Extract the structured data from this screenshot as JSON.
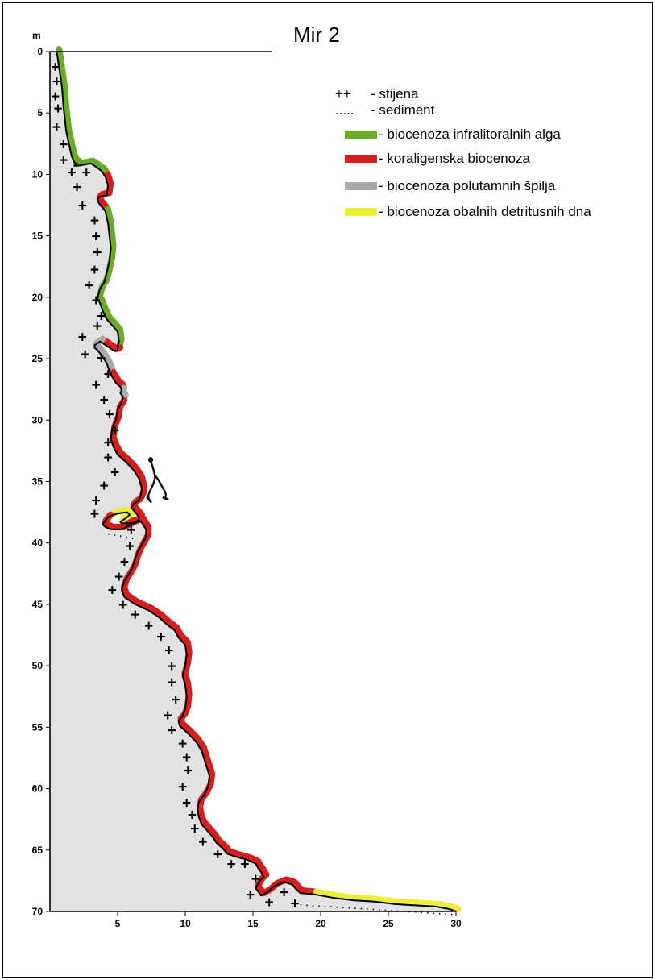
{
  "title": "Mir 2",
  "y_unit": "m",
  "legend": [
    {
      "symbol": "++",
      "label": "- stijena",
      "color": null,
      "icon": "rock-symbol"
    },
    {
      "symbol": ".....",
      "label": "- sediment",
      "color": null,
      "icon": "sediment-symbol"
    },
    {
      "symbol": "",
      "label": "- biocenoza infralitoralnih alga",
      "color": "#6aaa2a",
      "icon": "green-swatch"
    },
    {
      "symbol": "",
      "label": "- koraligenska biocenoza",
      "color": "#d51f1f",
      "icon": "red-swatch"
    },
    {
      "symbol": "",
      "label": "- biocenoza polutamnih špilja",
      "color": "#aaaaaa",
      "icon": "gray-swatch"
    },
    {
      "symbol": "",
      "label": "- biocenoza obalnih detritusnih dna",
      "color": "#eded3c",
      "icon": "yellow-swatch"
    }
  ],
  "chart_data": {
    "type": "profile",
    "title": "Mir 2",
    "xlabel": "",
    "ylabel": "m",
    "xlim": [
      0,
      30
    ],
    "ylim": [
      0,
      70
    ],
    "y_inverted": true,
    "x_ticks": [
      5,
      10,
      15,
      20,
      25,
      30
    ],
    "y_ticks": [
      0,
      5,
      10,
      15,
      20,
      25,
      30,
      35,
      40,
      45,
      50,
      55,
      60,
      65,
      70
    ],
    "profile": {
      "x": [
        0.5,
        0.7,
        0.9,
        1.0,
        1.1,
        1.2,
        1.4,
        1.6,
        1.8,
        1.9,
        2.0,
        1.9,
        1.8,
        2.0,
        2.5,
        3.0,
        3.3,
        3.8,
        4.1,
        4.3,
        4.2,
        3.7,
        3.5,
        3.6,
        3.8,
        4.1,
        4.3,
        4.4,
        4.5,
        4.4,
        4.2,
        4.0,
        3.7,
        3.6,
        3.5,
        3.7,
        3.9,
        4.2,
        4.6,
        5.0,
        5.1,
        5.0,
        5.0,
        4.8,
        3.7,
        3.3,
        3.3,
        3.5,
        3.8,
        4.2,
        4.5,
        4.9,
        5.2,
        5.3,
        5.2,
        5.4,
        5.3,
        5.0,
        4.9,
        4.6,
        4.5,
        4.7,
        5.0,
        5.6,
        6.2,
        6.6,
        6.8,
        6.7,
        6.5,
        6.2,
        6.0,
        6.3,
        6.6,
        6.5,
        6.0,
        5.6,
        5.3,
        5.2,
        5.3,
        5.6,
        5.9,
        5.7,
        5.0,
        4.3,
        4.0,
        3.9,
        4.1,
        4.5,
        4.8,
        5.3,
        6.2,
        6.7,
        7.1,
        7.1,
        6.8,
        6.5,
        6.3,
        6.1,
        5.8,
        5.5,
        5.3,
        5.5,
        6.3,
        7.3,
        8.0,
        8.6,
        9.2,
        9.5,
        10.0,
        10.1,
        10.0,
        9.8,
        10.0,
        10.1,
        10.0,
        9.8,
        9.5,
        9.6,
        10.2,
        10.8,
        11.2,
        11.4,
        11.6,
        11.8,
        11.7,
        11.4,
        11.0,
        10.9,
        11.0,
        11.2,
        11.6,
        12.0,
        12.3,
        12.8,
        13.1,
        13.9,
        14.6,
        15.2,
        15.4,
        15.6,
        15.8,
        15.5,
        15.2,
        15.6,
        16.1,
        16.6,
        17.3,
        17.9,
        18.2,
        18.5,
        19.5,
        21.0,
        22.5,
        24.0,
        25.5,
        27.0,
        28.5,
        29.5,
        30.0
      ],
      "y": [
        0.0,
        1.5,
        3.0,
        4.5,
        5.5,
        6.5,
        7.5,
        8.5,
        9.0,
        9.1,
        9.1,
        9.2,
        9.3,
        9.3,
        9.2,
        9.1,
        9.3,
        9.7,
        10.2,
        10.9,
        11.7,
        11.8,
        12.0,
        12.3,
        12.6,
        13.0,
        14.0,
        15.0,
        16.0,
        17.0,
        18.0,
        18.8,
        19.3,
        19.7,
        20.1,
        20.5,
        21.1,
        21.8,
        22.3,
        22.8,
        23.6,
        24.0,
        24.3,
        24.4,
        23.6,
        23.9,
        24.1,
        24.3,
        24.7,
        25.4,
        26.3,
        27.0,
        27.3,
        27.6,
        27.8,
        28.1,
        28.6,
        29.1,
        29.9,
        30.7,
        31.6,
        32.2,
        32.8,
        33.4,
        34.1,
        34.8,
        35.6,
        36.2,
        36.6,
        36.8,
        37.1,
        37.5,
        37.9,
        38.2,
        38.4,
        38.4,
        38.4,
        38.3,
        38.2,
        38.0,
        37.7,
        37.5,
        37.6,
        37.9,
        38.3,
        38.5,
        38.7,
        38.9,
        38.9,
        38.9,
        38.4,
        38.2,
        38.9,
        39.5,
        40.1,
        40.7,
        41.3,
        42.0,
        42.6,
        43.1,
        43.8,
        44.4,
        45.0,
        45.5,
        46.0,
        46.6,
        47.1,
        47.7,
        48.3,
        49.1,
        50.0,
        50.8,
        51.6,
        52.5,
        53.5,
        54.1,
        54.5,
        54.9,
        55.5,
        56.2,
        56.9,
        57.6,
        58.3,
        59.0,
        59.8,
        60.5,
        61.1,
        61.7,
        62.3,
        62.9,
        63.4,
        63.9,
        64.4,
        64.9,
        65.3,
        65.6,
        65.8,
        66.1,
        66.5,
        66.8,
        67.2,
        67.5,
        68.1,
        68.7,
        68.4,
        67.9,
        67.6,
        67.8,
        68.2,
        68.5,
        68.6,
        68.9,
        69.1,
        69.2,
        69.4,
        69.5,
        69.6,
        69.8,
        70.0
      ]
    },
    "bands": [
      {
        "biocenosis": "biocenoza infralitoralnih alga",
        "color": "#6aaa2a",
        "from_index": 0,
        "to_index": 18
      },
      {
        "biocenosis": "koraligenska biocenoza",
        "color": "#d51f1f",
        "from_index": 18,
        "to_index": 25
      },
      {
        "biocenosis": "biocenoza infralitoralnih alga",
        "color": "#6aaa2a",
        "from_index": 25,
        "to_index": 42
      },
      {
        "biocenosis": "koraligenska biocenoza",
        "color": "#d51f1f",
        "from_index": 42,
        "to_index": 44
      },
      {
        "biocenosis": "biocenoza polutamnih špilja",
        "color": "#aaaaaa",
        "from_index": 44,
        "to_index": 50
      },
      {
        "biocenosis": "koraligenska biocenoza",
        "color": "#d51f1f",
        "from_index": 50,
        "to_index": 53
      },
      {
        "biocenosis": "biocenoza polutamnih špilja",
        "color": "#aaaaaa",
        "from_index": 53,
        "to_index": 56
      },
      {
        "biocenosis": "koraligenska biocenoza",
        "color": "#d51f1f",
        "from_index": 56,
        "to_index": 77
      },
      {
        "biocenosis": "biocenoza obalnih detritusnih dna",
        "color": "#eded3c",
        "from_index": 77,
        "to_index": 83
      },
      {
        "biocenosis": "koraligenska biocenoza",
        "color": "#d51f1f",
        "from_index": 83,
        "to_index": 150
      },
      {
        "biocenosis": "biocenoza obalnih detritusnih dna",
        "color": "#eded3c",
        "from_index": 150,
        "to_index": 159
      }
    ],
    "rock_markers": [
      [
        0.4,
        1.2
      ],
      [
        0.5,
        2.4
      ],
      [
        0.4,
        3.6
      ],
      [
        0.6,
        4.6
      ],
      [
        0.5,
        6.1
      ],
      [
        1.0,
        7.5
      ],
      [
        1.0,
        8.8
      ],
      [
        1.6,
        9.8
      ],
      [
        2.7,
        9.8
      ],
      [
        2.0,
        11.0
      ],
      [
        2.4,
        12.5
      ],
      [
        3.3,
        13.7
      ],
      [
        3.4,
        15.0
      ],
      [
        3.5,
        16.3
      ],
      [
        3.3,
        17.7
      ],
      [
        2.9,
        19.0
      ],
      [
        3.4,
        20.2
      ],
      [
        3.8,
        21.5
      ],
      [
        3.5,
        22.3
      ],
      [
        2.4,
        23.2
      ],
      [
        2.6,
        24.6
      ],
      [
        3.8,
        24.9
      ],
      [
        4.3,
        26.2
      ],
      [
        3.4,
        27.1
      ],
      [
        4.0,
        28.3
      ],
      [
        4.4,
        29.5
      ],
      [
        4.8,
        30.8
      ],
      [
        4.3,
        31.8
      ],
      [
        4.3,
        33.0
      ],
      [
        4.8,
        34.2
      ],
      [
        4.0,
        35.3
      ],
      [
        3.4,
        36.5
      ],
      [
        3.3,
        37.6
      ],
      [
        6.0,
        38.9
      ],
      [
        5.9,
        40.2
      ],
      [
        5.5,
        41.5
      ],
      [
        5.1,
        42.7
      ],
      [
        4.6,
        43.8
      ],
      [
        5.4,
        45.0
      ],
      [
        6.3,
        45.8
      ],
      [
        7.3,
        46.7
      ],
      [
        8.2,
        47.6
      ],
      [
        8.8,
        48.7
      ],
      [
        9.0,
        50.0
      ],
      [
        9.0,
        51.3
      ],
      [
        9.3,
        52.7
      ],
      [
        8.7,
        54.0
      ],
      [
        9.0,
        55.2
      ],
      [
        9.8,
        56.3
      ],
      [
        10.1,
        57.4
      ],
      [
        10.2,
        58.5
      ],
      [
        9.8,
        59.8
      ],
      [
        10.1,
        61.1
      ],
      [
        10.5,
        62.1
      ],
      [
        10.7,
        63.2
      ],
      [
        11.3,
        64.3
      ],
      [
        12.4,
        65.3
      ],
      [
        13.4,
        66.1
      ],
      [
        14.4,
        66.1
      ],
      [
        15.2,
        67.3
      ],
      [
        14.8,
        68.6
      ],
      [
        16.2,
        69.2
      ],
      [
        17.3,
        68.4
      ],
      [
        18.1,
        69.3
      ]
    ],
    "sediment_segments": [
      {
        "x1": 4.3,
        "x2": 6.3,
        "y1": 39.0,
        "y2": 39.4
      },
      {
        "x1": 18.5,
        "x2": 30.0,
        "y1": 69.2,
        "y2": 70.0
      }
    ],
    "diver": {
      "icon": "diver-icon",
      "x": 7.8,
      "y": 35.0
    }
  }
}
